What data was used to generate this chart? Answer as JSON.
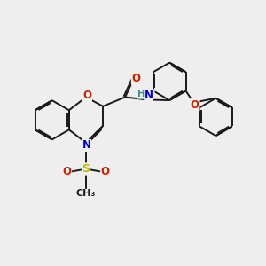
{
  "bg_color": "#eeeeee",
  "bond_color": "#1a1a1a",
  "bond_width": 1.4,
  "atom_colors": {
    "O": "#cc2200",
    "N": "#0000cc",
    "S": "#bbbb00",
    "H": "#4a8a8a",
    "C": "#1a1a1a"
  },
  "font_size": 8.5,
  "dbo": 0.055
}
